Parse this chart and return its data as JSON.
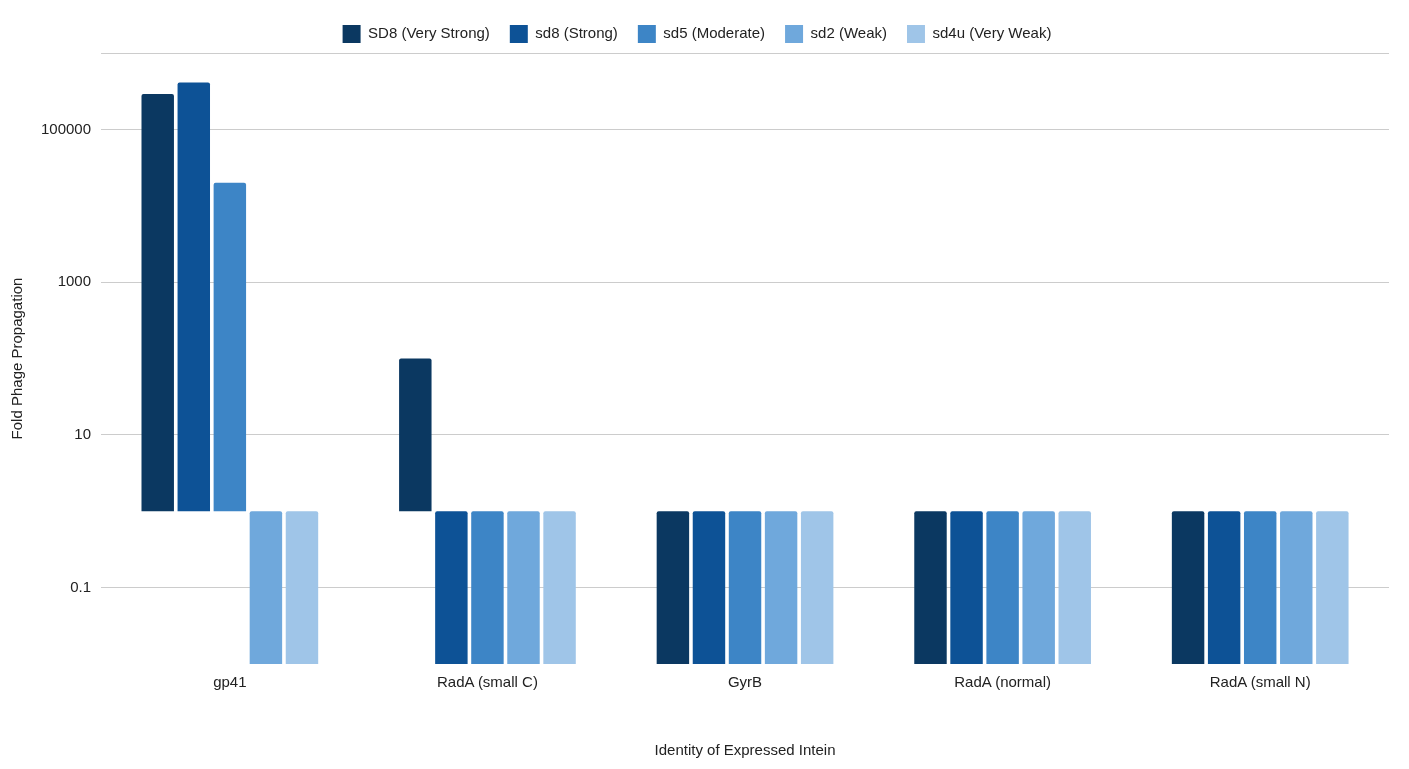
{
  "chart_data": {
    "type": "bar",
    "xlabel": "Identity of Expressed Intein",
    "ylabel": "Fold Phage Propagation",
    "categories": [
      "gp41",
      "RadA (small C)",
      "GyrB",
      "RadA (normal)",
      "RadA (small N)"
    ],
    "series": [
      {
        "name": "SD8 (Very Strong)",
        "color": "#0b3861",
        "base": [
          1,
          1,
          1,
          1,
          1
        ],
        "values": [
          290000,
          99,
          -0.99,
          -0.99,
          -0.99
        ]
      },
      {
        "name": "sd8 (Strong)",
        "color": "#0d5296",
        "base": [
          1,
          1,
          1,
          1,
          1
        ],
        "values": [
          410000,
          -0.99,
          -0.99,
          -0.99,
          -0.99
        ]
      },
      {
        "name": "sd5 (Moderate)",
        "color": "#3d85c6",
        "base": [
          1,
          1,
          1,
          1,
          1
        ],
        "values": [
          20000,
          -0.99,
          -0.99,
          -0.99,
          -0.99
        ]
      },
      {
        "name": "sd2 (Weak)",
        "color": "#6fa8dc",
        "base": [
          1,
          1,
          1,
          1,
          1
        ],
        "values": [
          -0.99,
          -0.99,
          -0.99,
          -0.99,
          -0.99
        ]
      },
      {
        "name": "sd4u (Very Weak)",
        "color": "#9fc5e8",
        "base": [
          1,
          1,
          1,
          1,
          1
        ],
        "values": [
          -0.99,
          -0.99,
          -0.99,
          -0.99,
          -0.99
        ]
      }
    ],
    "log": "y",
    "ylim": [
      0.01,
      1000000
    ],
    "yticks": [
      0.1,
      10,
      1000,
      100000
    ],
    "grid": "y",
    "legend": "top"
  }
}
